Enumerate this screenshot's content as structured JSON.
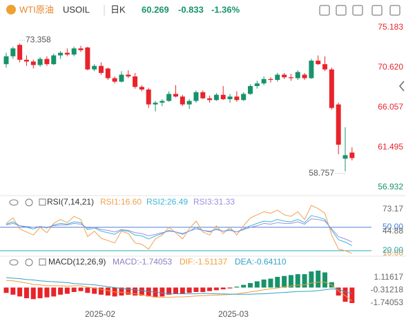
{
  "header": {
    "symbol": "WTI原油",
    "code": "USOIL",
    "period": "日K",
    "price": "60.269",
    "change": "-0.833",
    "change_pct": "-1.36%"
  },
  "time_axis": {
    "labels": [
      "2025-02",
      "2025-03"
    ]
  },
  "chart_data": [
    {
      "type": "candlestick",
      "up_color": "#17936b",
      "down_color": "#e8242a",
      "open": [
        71.0,
        71.9,
        73.2,
        71.5,
        71.3,
        70.9,
        71.6,
        71.0,
        72.0,
        72.3,
        72.1,
        72.8,
        72.9,
        70.4,
        70.8,
        70.5,
        69.4,
        69.0,
        69.8,
        69.6,
        68.4,
        68.1,
        66.4,
        66.6,
        66.8,
        67.6,
        67.3,
        66.4,
        66.8,
        67.8,
        67.1,
        66.9,
        67.5,
        67.0,
        67.3,
        66.9,
        67.6,
        68.5,
        68.8,
        69.3,
        69.2,
        69.8,
        69.5,
        69.4,
        69.8,
        69.4,
        71.4,
        71.0,
        70.4,
        66.4,
        60.2,
        60.9
      ],
      "high": [
        72.3,
        73.0,
        73.358,
        72.0,
        71.5,
        71.8,
        71.9,
        72.2,
        72.5,
        72.8,
        73.0,
        73.1,
        73.0,
        71.0,
        71.2,
        70.6,
        69.6,
        70.2,
        70.3,
        70.0,
        68.6,
        68.3,
        66.8,
        67.0,
        67.9,
        68.6,
        67.5,
        67.0,
        68.0,
        68.0,
        67.4,
        67.7,
        68.5,
        67.6,
        67.9,
        67.8,
        68.7,
        69.1,
        69.6,
        69.5,
        70.0,
        70.0,
        69.9,
        70.3,
        70.0,
        71.6,
        72.0,
        71.9,
        70.6,
        66.6,
        63.8,
        61.5
      ],
      "low": [
        70.6,
        71.6,
        71.2,
        70.8,
        70.5,
        70.7,
        70.8,
        70.9,
        71.6,
        71.9,
        71.9,
        72.4,
        70.3,
        70.2,
        69.8,
        69.2,
        68.8,
        68.9,
        69.4,
        68.2,
        67.9,
        66.0,
        65.6,
        66.2,
        66.7,
        67.2,
        66.2,
        65.9,
        66.6,
        67.0,
        66.6,
        66.8,
        66.9,
        66.6,
        66.7,
        66.8,
        67.5,
        68.2,
        68.6,
        68.9,
        69.0,
        69.3,
        69.1,
        69.2,
        69.2,
        69.3,
        70.9,
        70.2,
        65.8,
        60.7,
        58.757,
        60.0
      ],
      "close": [
        71.9,
        72.8,
        71.5,
        71.3,
        70.9,
        71.6,
        71.0,
        72.0,
        72.3,
        72.1,
        72.8,
        72.6,
        70.4,
        70.8,
        70.0,
        69.4,
        69.0,
        69.8,
        69.6,
        68.4,
        68.1,
        66.4,
        66.6,
        66.8,
        67.6,
        67.3,
        66.4,
        66.8,
        67.8,
        67.1,
        66.9,
        67.5,
        67.0,
        67.3,
        66.9,
        67.6,
        68.5,
        68.8,
        69.3,
        69.2,
        69.8,
        69.5,
        69.4,
        70.1,
        69.4,
        71.4,
        71.0,
        70.4,
        66.0,
        61.8,
        60.6,
        60.269
      ],
      "ylim": [
        56.3,
        75.97
      ],
      "yticks": [
        75.183,
        {
          "value": 70.62,
          "label": "70.620"
        },
        66.057,
        61.495,
        56.932
      ],
      "ytick_colors": [
        "#e8242a",
        "#e8242a",
        "#e8242a",
        "#e8242a",
        "#17936b"
      ]
    },
    {
      "type": "line",
      "title": "RSI(7,14,21)",
      "series": [
        {
          "name": "RSI1:16.60",
          "color": "#f0a050",
          "values": [
            55,
            62,
            48,
            44,
            40,
            50,
            43,
            55,
            60,
            56,
            64,
            60,
            38,
            45,
            36,
            33,
            30,
            45,
            42,
            30,
            28,
            22,
            35,
            40,
            50,
            43,
            35,
            48,
            58,
            44,
            40,
            52,
            42,
            50,
            40,
            52,
            62,
            66,
            70,
            68,
            72,
            66,
            64,
            70,
            60,
            78,
            74,
            68,
            40,
            22,
            20,
            16.6
          ]
        },
        {
          "name": "RSI2:26.49",
          "color": "#3db6d6",
          "values": [
            54,
            57,
            52,
            50,
            48,
            51,
            49,
            53,
            55,
            54,
            57,
            56,
            47,
            49,
            45,
            43,
            41,
            46,
            45,
            40,
            39,
            35,
            39,
            42,
            46,
            44,
            41,
            45,
            50,
            46,
            44,
            48,
            45,
            47,
            44,
            48,
            52,
            55,
            58,
            57,
            60,
            58,
            57,
            60,
            56,
            65,
            63,
            60,
            46,
            34,
            31,
            26.49
          ]
        },
        {
          "name": "RSI3:31.33",
          "color": "#9c8ee0",
          "values": [
            53,
            55,
            52,
            51,
            50,
            51,
            50,
            52,
            53,
            53,
            55,
            54,
            49,
            50,
            47,
            46,
            44,
            47,
            46,
            43,
            42,
            39,
            41,
            43,
            45,
            44,
            42,
            45,
            48,
            46,
            45,
            47,
            45,
            46,
            44,
            47,
            50,
            52,
            55,
            54,
            56,
            55,
            55,
            57,
            54,
            61,
            60,
            58,
            48,
            38,
            35,
            31.33
          ]
        }
      ],
      "ylim": [
        14.7,
        76.5
      ],
      "yticks": [
        73.17,
        {
          "value": 50,
          "label": "50.00"
        },
        44.88,
        {
          "value": 16.6,
          "label": "16.60"
        },
        {
          "value": 20,
          "label": "20.00"
        }
      ],
      "ytick_colors": [
        "#666666",
        "#4a7fd8",
        "#666666",
        "#e0a060",
        "#2aa8b0"
      ],
      "levels": [
        {
          "value": 50,
          "color": "#4a7fd8"
        },
        {
          "value": 20,
          "color": "#2aa8b0"
        }
      ]
    },
    {
      "type": "line",
      "title": "MACD(12,26,9)",
      "series": [
        {
          "name": "MACD:-1.74053",
          "color": "#8e7cc3",
          "style": "bar",
          "up_color": "#17936b",
          "down_color": "#e8242a",
          "values": [
            -0.6,
            -0.8,
            -1.0,
            -1.2,
            -1.3,
            -1.2,
            -1.1,
            -1.0,
            -0.8,
            -0.7,
            -0.5,
            -0.4,
            -0.6,
            -0.7,
            -0.8,
            -0.9,
            -1.0,
            -0.9,
            -0.8,
            -0.9,
            -0.9,
            -1.0,
            -1.1,
            -1.0,
            -0.8,
            -0.7,
            -0.7,
            -0.6,
            -0.5,
            -0.5,
            -0.4,
            -0.3,
            -0.2,
            -0.1,
            0.1,
            0.3,
            0.5,
            0.7,
            0.9,
            1.0,
            1.2,
            1.3,
            1.4,
            1.5,
            1.5,
            1.8,
            1.9,
            1.7,
            0.6,
            -0.9,
            -1.6,
            -1.74053
          ]
        },
        {
          "name": "DIF:-1.51137",
          "color": "#f39c3c",
          "values": [
            0.8,
            0.75,
            0.65,
            0.5,
            0.35,
            0.3,
            0.2,
            0.2,
            0.2,
            0.15,
            0.2,
            0.2,
            0.05,
            -0.05,
            -0.2,
            -0.35,
            -0.5,
            -0.55,
            -0.6,
            -0.7,
            -0.8,
            -0.95,
            -1.05,
            -1.1,
            -1.1,
            -1.05,
            -1.05,
            -1.0,
            -0.95,
            -0.9,
            -0.88,
            -0.85,
            -0.82,
            -0.78,
            -0.72,
            -0.6,
            -0.5,
            -0.38,
            -0.25,
            -0.15,
            -0.05,
            0.08,
            0.18,
            0.28,
            0.32,
            0.5,
            0.6,
            0.62,
            0.3,
            -0.4,
            -0.9,
            -1.51137
          ]
        },
        {
          "name": "DEA:-0.64110",
          "color": "#2ea3c9",
          "values": [
            1.1,
            1.05,
            1.0,
            0.9,
            0.85,
            0.75,
            0.7,
            0.65,
            0.6,
            0.55,
            0.45,
            0.4,
            0.35,
            0.3,
            0.2,
            0.1,
            0.0,
            -0.1,
            -0.2,
            -0.25,
            -0.35,
            -0.45,
            -0.5,
            -0.6,
            -0.7,
            -0.7,
            -0.7,
            -0.7,
            -0.7,
            -0.65,
            -0.68,
            -0.7,
            -0.72,
            -0.74,
            -0.75,
            -0.75,
            -0.75,
            -0.72,
            -0.7,
            -0.65,
            -0.6,
            -0.55,
            -0.5,
            -0.45,
            -0.43,
            -0.4,
            -0.35,
            -0.25,
            -0.15,
            -0.2,
            -0.5,
            -0.6411
          ]
        }
      ],
      "ylim": [
        -2.51,
        2.28
      ],
      "yticks": [
        1.11617,
        -0.31218,
        -1.74053
      ],
      "ytick_colors": [
        "#666666",
        "#666666",
        "#666666"
      ]
    }
  ]
}
